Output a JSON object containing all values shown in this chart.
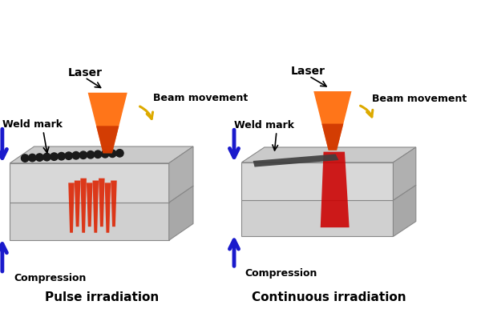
{
  "left_title": "Pulse irradiation",
  "right_title": "Continuous irradiation",
  "labels": {
    "laser": "Laser",
    "weld_mark": "Weld mark",
    "beam_movement": "Beam movement",
    "compression": "Compression"
  },
  "colors": {
    "background": "#ffffff",
    "box_top": "#c8c8c8",
    "box_side": "#a8a8a8",
    "box_front_upper": "#d8d8d8",
    "box_front_lower": "#d0d0d0",
    "text_color": "#000000",
    "blue_arrow": "#1a1acc",
    "beam_orange": "#ff6600",
    "beam_dark": "#cc3300",
    "beam_light": "#ffaa55",
    "weld_dark": "#1a1a1a",
    "weld_red": "#cc2200",
    "cont_seam": "#444444",
    "cont_red": "#cc0000",
    "gold": "#ddaa00"
  },
  "fontsize_label": 9,
  "fontsize_title": 11
}
